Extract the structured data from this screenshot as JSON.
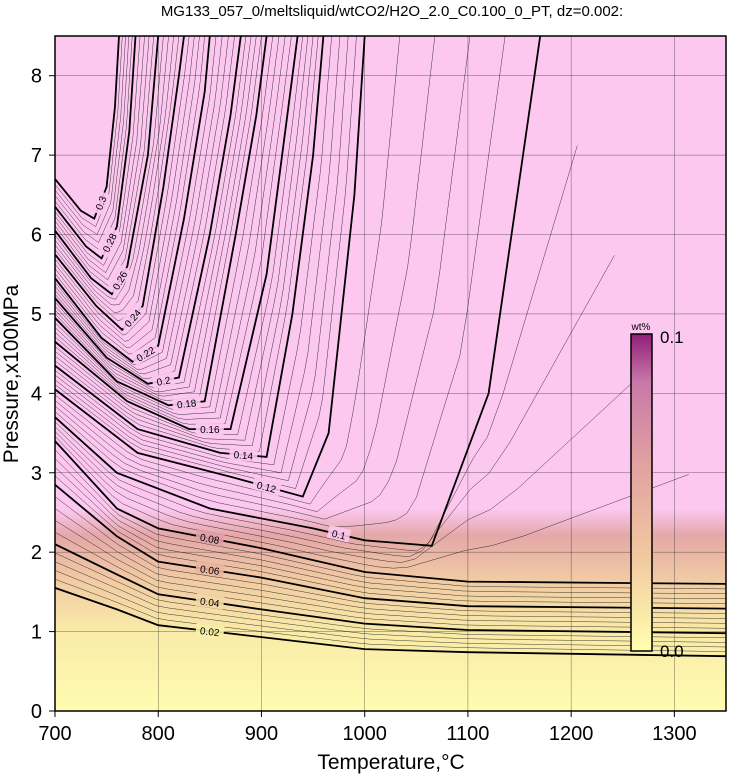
{
  "chart_data": {
    "type": "heatmap",
    "title": "MG133_057_0/meltsliquid/wtCO2/H2O_2.0_C0.100_0_PT, dz=0.002:",
    "xlabel": "Temperature,°C",
    "ylabel": "Pressure,x100MPa",
    "xlim": [
      700,
      1350
    ],
    "ylim": [
      0,
      8.5
    ],
    "xticks": [
      "700",
      "800",
      "900",
      "1000",
      "1100",
      "1200",
      "1300"
    ],
    "yticks": [
      "0",
      "1",
      "2",
      "3",
      "4",
      "5",
      "6",
      "7",
      "8"
    ],
    "grid": true,
    "colorbar": {
      "unit": "wt%",
      "min_label": "0.0",
      "max_label": "0.1",
      "placement": "right-inside",
      "colors": [
        "#ffffb0",
        "#f2c8a0",
        "#e0a0a0",
        "#c878a8",
        "#901e78"
      ]
    },
    "saturated_color": "#fcc8f0",
    "contour_levels": [
      {
        "value": 0.02,
        "label": "0.02",
        "color": "#f7f2a8",
        "path": [
          [
            700,
            1.55
          ],
          [
            760,
            1.28
          ],
          [
            800,
            1.08
          ],
          [
            900,
            0.93
          ],
          [
            1000,
            0.78
          ],
          [
            1100,
            0.74
          ],
          [
            1350,
            0.69
          ]
        ]
      },
      {
        "value": 0.04,
        "label": "0.04",
        "color": "#f4d8a4",
        "path": [
          [
            700,
            2.1
          ],
          [
            760,
            1.72
          ],
          [
            800,
            1.47
          ],
          [
            900,
            1.28
          ],
          [
            1000,
            1.1
          ],
          [
            1100,
            1.02
          ],
          [
            1350,
            0.98
          ]
        ]
      },
      {
        "value": 0.06,
        "label": "0.06",
        "color": "#ebb4a0",
        "path": [
          [
            700,
            2.85
          ],
          [
            760,
            2.2
          ],
          [
            800,
            1.88
          ],
          [
            900,
            1.68
          ],
          [
            1000,
            1.42
          ],
          [
            1100,
            1.32
          ],
          [
            1350,
            1.29
          ]
        ]
      },
      {
        "value": 0.08,
        "label": "0.08",
        "color": "#e0a0a8",
        "path": [
          [
            700,
            3.4
          ],
          [
            760,
            2.55
          ],
          [
            800,
            2.3
          ],
          [
            900,
            2.05
          ],
          [
            1000,
            1.75
          ],
          [
            1100,
            1.63
          ],
          [
            1350,
            1.6
          ]
        ]
      },
      {
        "value": 0.1,
        "label": "0.1",
        "color": "#fcc8f0",
        "path": [
          [
            700,
            3.7
          ],
          [
            760,
            3.0
          ],
          [
            850,
            2.55
          ],
          [
            950,
            2.3
          ],
          [
            1000,
            2.15
          ],
          [
            1065,
            2.08
          ],
          [
            1120,
            4.0
          ],
          [
            1170,
            8.5
          ]
        ]
      },
      {
        "value": 0.12,
        "label": "0.12",
        "color": "",
        "path": [
          [
            700,
            4.05
          ],
          [
            780,
            3.25
          ],
          [
            870,
            2.95
          ],
          [
            940,
            2.7
          ],
          [
            965,
            3.5
          ],
          [
            990,
            6.5
          ],
          [
            1000,
            8.5
          ]
        ]
      },
      {
        "value": 0.14,
        "label": "0.14",
        "color": "",
        "path": [
          [
            700,
            4.35
          ],
          [
            780,
            3.55
          ],
          [
            860,
            3.25
          ],
          [
            905,
            3.2
          ],
          [
            930,
            5.0
          ],
          [
            950,
            7.0
          ],
          [
            960,
            8.5
          ]
        ]
      },
      {
        "value": 0.16,
        "label": "0.16",
        "color": "",
        "path": [
          [
            700,
            4.65
          ],
          [
            770,
            3.9
          ],
          [
            830,
            3.55
          ],
          [
            870,
            3.55
          ],
          [
            905,
            5.5
          ],
          [
            925,
            7.5
          ],
          [
            935,
            8.5
          ]
        ]
      },
      {
        "value": 0.18,
        "label": "0.18",
        "color": "",
        "path": [
          [
            700,
            4.95
          ],
          [
            760,
            4.15
          ],
          [
            810,
            3.85
          ],
          [
            845,
            3.9
          ],
          [
            875,
            6.0
          ],
          [
            895,
            7.5
          ],
          [
            905,
            8.5
          ]
        ]
      },
      {
        "value": 0.2,
        "label": "0.2",
        "color": "",
        "path": [
          [
            700,
            5.2
          ],
          [
            750,
            4.45
          ],
          [
            790,
            4.12
          ],
          [
            820,
            4.2
          ],
          [
            850,
            6.0
          ],
          [
            870,
            7.5
          ],
          [
            880,
            8.5
          ]
        ]
      },
      {
        "value": 0.22,
        "label": "0.22",
        "color": "",
        "path": [
          [
            700,
            5.45
          ],
          [
            745,
            4.7
          ],
          [
            775,
            4.4
          ],
          [
            800,
            4.6
          ],
          [
            825,
            6.2
          ],
          [
            845,
            7.8
          ],
          [
            850,
            8.5
          ]
        ]
      },
      {
        "value": 0.24,
        "label": "0.24",
        "color": "",
        "path": [
          [
            700,
            5.75
          ],
          [
            740,
            5.1
          ],
          [
            765,
            4.8
          ],
          [
            785,
            5.1
          ],
          [
            805,
            6.6
          ],
          [
            820,
            8.0
          ],
          [
            825,
            8.5
          ]
        ]
      },
      {
        "value": 0.26,
        "label": "0.26",
        "color": "",
        "path": [
          [
            700,
            6.05
          ],
          [
            735,
            5.45
          ],
          [
            755,
            5.25
          ],
          [
            770,
            5.6
          ],
          [
            790,
            7.0
          ],
          [
            800,
            8.5
          ]
        ]
      },
      {
        "value": 0.28,
        "label": "0.28",
        "color": "",
        "path": [
          [
            700,
            6.35
          ],
          [
            730,
            5.85
          ],
          [
            745,
            5.7
          ],
          [
            760,
            6.1
          ],
          [
            772,
            7.3
          ],
          [
            778,
            8.5
          ]
        ]
      },
      {
        "value": 0.3,
        "label": "0.3",
        "color": "",
        "path": [
          [
            700,
            6.7
          ],
          [
            725,
            6.3
          ],
          [
            738,
            6.2
          ],
          [
            750,
            6.6
          ],
          [
            758,
            7.6
          ],
          [
            762,
            8.5
          ]
        ]
      }
    ],
    "annotations": []
  }
}
